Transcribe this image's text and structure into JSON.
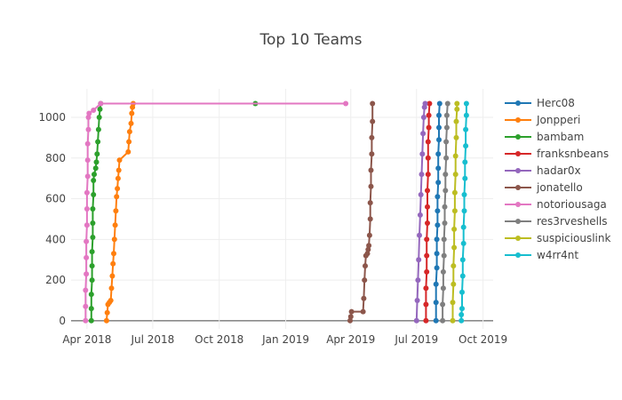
{
  "chart_data": {
    "type": "line",
    "title": "Top 10 Teams",
    "xlabel": "",
    "ylabel": "",
    "x_axis": {
      "type": "date",
      "range": [
        "2018-03-10",
        "2019-10-15"
      ],
      "ticks": [
        {
          "date": "2018-04-01",
          "label": "Apr 2018"
        },
        {
          "date": "2018-07-01",
          "label": "Jul 2018"
        },
        {
          "date": "2018-10-01",
          "label": "Oct 2018"
        },
        {
          "date": "2019-01-01",
          "label": "Jan 2019"
        },
        {
          "date": "2019-04-01",
          "label": "Apr 2019"
        },
        {
          "date": "2019-07-01",
          "label": "Jul 2019"
        },
        {
          "date": "2019-10-01",
          "label": "Oct 2019"
        }
      ]
    },
    "y_axis": {
      "range": [
        -40,
        1140
      ],
      "ticks": [
        0,
        200,
        400,
        600,
        800,
        1000
      ]
    },
    "grid": true,
    "legend_position": "right",
    "series": [
      {
        "name": "Herc08",
        "color": "#1f77b4",
        "points": [
          [
            "2019-07-28",
            0
          ],
          [
            "2019-07-28",
            90
          ],
          [
            "2019-07-28",
            180
          ],
          [
            "2019-07-29",
            260
          ],
          [
            "2019-07-29",
            330
          ],
          [
            "2019-07-29",
            400
          ],
          [
            "2019-07-30",
            470
          ],
          [
            "2019-07-30",
            540
          ],
          [
            "2019-07-30",
            610
          ],
          [
            "2019-07-31",
            680
          ],
          [
            "2019-07-31",
            750
          ],
          [
            "2019-07-31",
            820
          ],
          [
            "2019-08-01",
            890
          ],
          [
            "2019-08-01",
            950
          ],
          [
            "2019-08-01",
            1010
          ],
          [
            "2019-08-02",
            1068
          ]
        ]
      },
      {
        "name": "Jonpperi",
        "color": "#ff7f0e",
        "points": [
          [
            "2018-04-28",
            0
          ],
          [
            "2018-04-29",
            40
          ],
          [
            "2018-04-30",
            80
          ],
          [
            "2018-05-02",
            90
          ],
          [
            "2018-05-04",
            100
          ],
          [
            "2018-05-05",
            160
          ],
          [
            "2018-05-06",
            220
          ],
          [
            "2018-05-07",
            280
          ],
          [
            "2018-05-08",
            330
          ],
          [
            "2018-05-09",
            400
          ],
          [
            "2018-05-10",
            470
          ],
          [
            "2018-05-11",
            540
          ],
          [
            "2018-05-12",
            610
          ],
          [
            "2018-05-13",
            650
          ],
          [
            "2018-05-14",
            700
          ],
          [
            "2018-05-15",
            740
          ],
          [
            "2018-05-16",
            790
          ],
          [
            "2018-05-28",
            830
          ],
          [
            "2018-05-29",
            880
          ],
          [
            "2018-05-30",
            930
          ],
          [
            "2018-06-01",
            970
          ],
          [
            "2018-06-02",
            1020
          ],
          [
            "2018-06-03",
            1050
          ],
          [
            "2018-06-04",
            1068
          ]
        ]
      },
      {
        "name": "bambam",
        "color": "#2ca02c",
        "points": [
          [
            "2018-04-07",
            0
          ],
          [
            "2018-04-07",
            60
          ],
          [
            "2018-04-07",
            130
          ],
          [
            "2018-04-08",
            200
          ],
          [
            "2018-04-08",
            270
          ],
          [
            "2018-04-08",
            340
          ],
          [
            "2018-04-09",
            410
          ],
          [
            "2018-04-09",
            480
          ],
          [
            "2018-04-09",
            550
          ],
          [
            "2018-04-10",
            620
          ],
          [
            "2018-04-10",
            690
          ],
          [
            "2018-04-11",
            720
          ],
          [
            "2018-04-13",
            750
          ],
          [
            "2018-04-14",
            780
          ],
          [
            "2018-04-15",
            820
          ],
          [
            "2018-04-16",
            880
          ],
          [
            "2018-04-17",
            940
          ],
          [
            "2018-04-18",
            1000
          ],
          [
            "2018-04-19",
            1040
          ],
          [
            "2018-04-20",
            1068
          ],
          [
            "2018-11-20",
            1068
          ]
        ]
      },
      {
        "name": "franksnbeans",
        "color": "#d62728",
        "points": [
          [
            "2019-07-14",
            0
          ],
          [
            "2019-07-14",
            80
          ],
          [
            "2019-07-14",
            160
          ],
          [
            "2019-07-15",
            240
          ],
          [
            "2019-07-15",
            320
          ],
          [
            "2019-07-15",
            400
          ],
          [
            "2019-07-16",
            480
          ],
          [
            "2019-07-16",
            560
          ],
          [
            "2019-07-16",
            640
          ],
          [
            "2019-07-17",
            720
          ],
          [
            "2019-07-17",
            800
          ],
          [
            "2019-07-17",
            880
          ],
          [
            "2019-07-18",
            950
          ],
          [
            "2019-07-18",
            1010
          ],
          [
            "2019-07-19",
            1068
          ]
        ]
      },
      {
        "name": "hadar0x",
        "color": "#9467bd",
        "points": [
          [
            "2019-07-01",
            0
          ],
          [
            "2019-07-02",
            100
          ],
          [
            "2019-07-03",
            200
          ],
          [
            "2019-07-04",
            300
          ],
          [
            "2019-07-05",
            420
          ],
          [
            "2019-07-06",
            520
          ],
          [
            "2019-07-07",
            620
          ],
          [
            "2019-07-08",
            720
          ],
          [
            "2019-07-09",
            820
          ],
          [
            "2019-07-10",
            920
          ],
          [
            "2019-07-11",
            1000
          ],
          [
            "2019-07-12",
            1050
          ],
          [
            "2019-07-13",
            1068
          ]
        ]
      },
      {
        "name": "jonatello",
        "color": "#8c564b",
        "points": [
          [
            "2019-03-31",
            0
          ],
          [
            "2019-04-01",
            20
          ],
          [
            "2019-04-02",
            45
          ],
          [
            "2019-04-18",
            45
          ],
          [
            "2019-04-19",
            110
          ],
          [
            "2019-04-20",
            200
          ],
          [
            "2019-04-21",
            270
          ],
          [
            "2019-04-22",
            320
          ],
          [
            "2019-04-24",
            330
          ],
          [
            "2019-04-25",
            350
          ],
          [
            "2019-04-26",
            370
          ],
          [
            "2019-04-27",
            420
          ],
          [
            "2019-04-28",
            500
          ],
          [
            "2019-04-28",
            580
          ],
          [
            "2019-04-29",
            660
          ],
          [
            "2019-04-29",
            740
          ],
          [
            "2019-04-30",
            820
          ],
          [
            "2019-04-30",
            900
          ],
          [
            "2019-05-01",
            980
          ],
          [
            "2019-05-01",
            1068
          ]
        ]
      },
      {
        "name": "notoriousaga",
        "color": "#e377c2",
        "points": [
          [
            "2018-03-30",
            0
          ],
          [
            "2018-03-30",
            70
          ],
          [
            "2018-03-30",
            150
          ],
          [
            "2018-03-31",
            230
          ],
          [
            "2018-03-31",
            310
          ],
          [
            "2018-03-31",
            390
          ],
          [
            "2018-04-01",
            470
          ],
          [
            "2018-04-01",
            550
          ],
          [
            "2018-04-01",
            630
          ],
          [
            "2018-04-02",
            710
          ],
          [
            "2018-04-02",
            790
          ],
          [
            "2018-04-02",
            870
          ],
          [
            "2018-04-03",
            940
          ],
          [
            "2018-04-03",
            1000
          ],
          [
            "2018-04-04",
            1020
          ],
          [
            "2018-04-10",
            1035
          ],
          [
            "2018-04-20",
            1068
          ],
          [
            "2019-03-25",
            1068
          ]
        ]
      },
      {
        "name": "res3rveshells",
        "color": "#7f7f7f",
        "points": [
          [
            "2019-08-06",
            0
          ],
          [
            "2019-08-06",
            80
          ],
          [
            "2019-08-07",
            160
          ],
          [
            "2019-08-07",
            240
          ],
          [
            "2019-08-08",
            320
          ],
          [
            "2019-08-08",
            400
          ],
          [
            "2019-08-09",
            480
          ],
          [
            "2019-08-09",
            560
          ],
          [
            "2019-08-10",
            640
          ],
          [
            "2019-08-10",
            720
          ],
          [
            "2019-08-11",
            800
          ],
          [
            "2019-08-11",
            880
          ],
          [
            "2019-08-12",
            950
          ],
          [
            "2019-08-12",
            1010
          ],
          [
            "2019-08-13",
            1068
          ]
        ]
      },
      {
        "name": "suspiciouslink",
        "color": "#bcbd22",
        "points": [
          [
            "2019-08-20",
            0
          ],
          [
            "2019-08-20",
            90
          ],
          [
            "2019-08-21",
            180
          ],
          [
            "2019-08-21",
            270
          ],
          [
            "2019-08-22",
            360
          ],
          [
            "2019-08-22",
            450
          ],
          [
            "2019-08-23",
            540
          ],
          [
            "2019-08-23",
            630
          ],
          [
            "2019-08-24",
            720
          ],
          [
            "2019-08-24",
            810
          ],
          [
            "2019-08-25",
            900
          ],
          [
            "2019-08-25",
            980
          ],
          [
            "2019-08-26",
            1040
          ],
          [
            "2019-08-26",
            1068
          ]
        ]
      },
      {
        "name": "w4rr4nt",
        "color": "#17becf",
        "points": [
          [
            "2019-09-01",
            0
          ],
          [
            "2019-09-01",
            30
          ],
          [
            "2019-09-02",
            60
          ],
          [
            "2019-09-02",
            140
          ],
          [
            "2019-09-03",
            220
          ],
          [
            "2019-09-03",
            300
          ],
          [
            "2019-09-04",
            380
          ],
          [
            "2019-09-04",
            460
          ],
          [
            "2019-09-05",
            540
          ],
          [
            "2019-09-05",
            620
          ],
          [
            "2019-09-06",
            700
          ],
          [
            "2019-09-06",
            780
          ],
          [
            "2019-09-07",
            860
          ],
          [
            "2019-09-07",
            940
          ],
          [
            "2019-09-08",
            1010
          ],
          [
            "2019-09-08",
            1068
          ]
        ]
      }
    ]
  }
}
